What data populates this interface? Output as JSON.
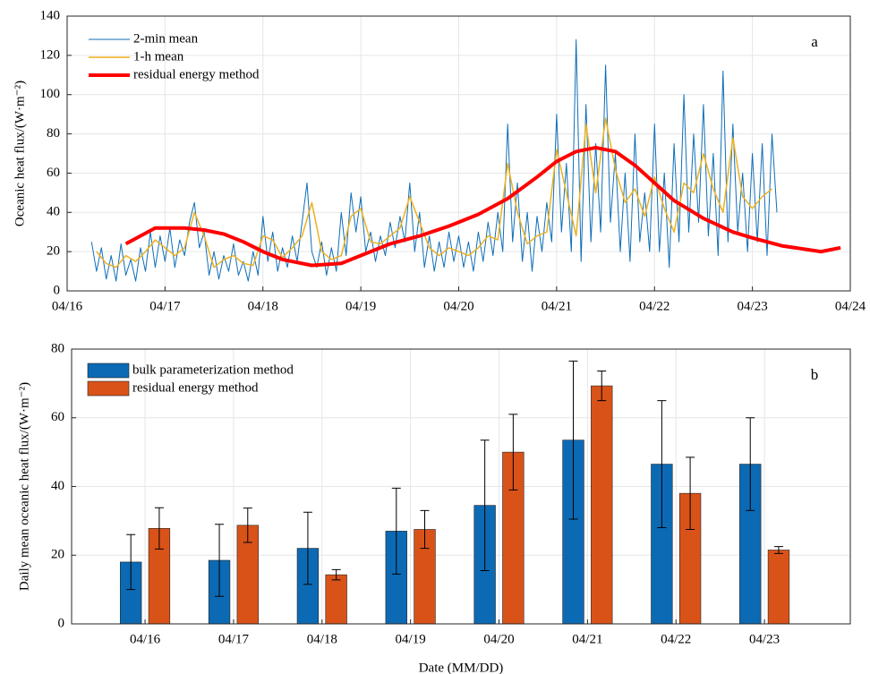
{
  "chart_data": [
    {
      "type": "line",
      "label": "a",
      "ylabel": "Oceanic heat flux/(W·m⁻²)",
      "xlim": [
        16,
        24
      ],
      "xticks": [
        {
          "value": 16,
          "label": "04/16"
        },
        {
          "value": 17,
          "label": "04/17"
        },
        {
          "value": 18,
          "label": "04/18"
        },
        {
          "value": 19,
          "label": "04/19"
        },
        {
          "value": 20,
          "label": "04/20"
        },
        {
          "value": 21,
          "label": "04/21"
        },
        {
          "value": 22,
          "label": "04/22"
        },
        {
          "value": 23,
          "label": "04/23"
        },
        {
          "value": 24,
          "label": "04/24"
        }
      ],
      "ylim": [
        0,
        140
      ],
      "yticks": [
        0,
        20,
        40,
        60,
        80,
        100,
        120,
        140
      ],
      "grid": true,
      "legend": "upper left",
      "series": [
        {
          "name": "2-min mean",
          "color": "#0f6eb8",
          "width": 1,
          "x": [
            16.25,
            16.3,
            16.35,
            16.4,
            16.45,
            16.5,
            16.55,
            16.6,
            16.65,
            16.7,
            16.75,
            16.8,
            16.85,
            16.9,
            16.95,
            17,
            17.05,
            17.1,
            17.15,
            17.2,
            17.25,
            17.3,
            17.35,
            17.4,
            17.45,
            17.5,
            17.55,
            17.6,
            17.65,
            17.7,
            17.75,
            17.8,
            17.85,
            17.9,
            17.95,
            18,
            18.05,
            18.1,
            18.15,
            18.2,
            18.25,
            18.3,
            18.35,
            18.4,
            18.45,
            18.5,
            18.55,
            18.6,
            18.65,
            18.7,
            18.75,
            18.8,
            18.85,
            18.9,
            18.95,
            19,
            19.05,
            19.1,
            19.15,
            19.2,
            19.25,
            19.3,
            19.35,
            19.4,
            19.45,
            19.5,
            19.55,
            19.6,
            19.65,
            19.7,
            19.75,
            19.8,
            19.85,
            19.9,
            19.95,
            20,
            20.05,
            20.1,
            20.15,
            20.2,
            20.25,
            20.3,
            20.35,
            20.4,
            20.45,
            20.5,
            20.55,
            20.6,
            20.65,
            20.7,
            20.75,
            20.8,
            20.85,
            20.9,
            20.95,
            21,
            21.05,
            21.1,
            21.15,
            21.2,
            21.25,
            21.3,
            21.35,
            21.4,
            21.45,
            21.5,
            21.55,
            21.6,
            21.65,
            21.7,
            21.75,
            21.8,
            21.85,
            21.9,
            21.95,
            22,
            22.05,
            22.1,
            22.15,
            22.2,
            22.25,
            22.3,
            22.35,
            22.4,
            22.45,
            22.5,
            22.55,
            22.6,
            22.65,
            22.7,
            22.75,
            22.8,
            22.85,
            22.9,
            22.95,
            23,
            23.05,
            23.1,
            23.15,
            23.2,
            23.25
          ],
          "values": [
            25,
            10,
            22,
            6,
            18,
            5,
            24,
            8,
            16,
            5,
            22,
            10,
            30,
            12,
            28,
            15,
            32,
            12,
            26,
            18,
            35,
            45,
            22,
            30,
            8,
            20,
            6,
            18,
            10,
            24,
            8,
            15,
            5,
            20,
            8,
            38,
            15,
            30,
            10,
            22,
            12,
            28,
            15,
            35,
            55,
            20,
            12,
            25,
            8,
            22,
            10,
            40,
            18,
            50,
            30,
            48,
            20,
            30,
            15,
            28,
            18,
            35,
            22,
            38,
            25,
            55,
            20,
            40,
            12,
            28,
            10,
            25,
            12,
            30,
            15,
            28,
            12,
            25,
            10,
            30,
            15,
            35,
            18,
            40,
            20,
            85,
            25,
            55,
            15,
            40,
            10,
            38,
            20,
            45,
            25,
            90,
            30,
            65,
            20,
            128,
            15,
            95,
            25,
            75,
            30,
            115,
            35,
            70,
            20,
            60,
            15,
            80,
            25,
            50,
            20,
            85,
            20,
            60,
            12,
            75,
            25,
            100,
            30,
            80,
            35,
            95,
            28,
            70,
            18,
            112,
            25,
            85,
            30,
            60,
            20,
            70,
            25,
            75,
            18,
            80,
            40
          ]
        },
        {
          "name": "1-h mean",
          "color": "#edb120",
          "width": 1.5,
          "x": [
            16.3,
            16.4,
            16.5,
            16.6,
            16.7,
            16.8,
            16.9,
            17,
            17.1,
            17.2,
            17.3,
            17.4,
            17.5,
            17.6,
            17.7,
            17.8,
            17.9,
            18,
            18.1,
            18.2,
            18.3,
            18.4,
            18.5,
            18.6,
            18.7,
            18.8,
            18.9,
            19,
            19.1,
            19.2,
            19.3,
            19.4,
            19.5,
            19.6,
            19.7,
            19.8,
            19.9,
            20,
            20.1,
            20.2,
            20.3,
            20.4,
            20.5,
            20.6,
            20.7,
            20.8,
            20.9,
            21,
            21.1,
            21.2,
            21.3,
            21.4,
            21.5,
            21.6,
            21.7,
            21.8,
            21.9,
            22,
            22.1,
            22.2,
            22.3,
            22.4,
            22.5,
            22.6,
            22.7,
            22.8,
            22.9,
            23,
            23.1,
            23.2
          ],
          "values": [
            20,
            14,
            12,
            18,
            15,
            20,
            26,
            22,
            18,
            22,
            40,
            28,
            12,
            16,
            18,
            14,
            13,
            28,
            26,
            17,
            22,
            28,
            45,
            20,
            16,
            18,
            38,
            42,
            25,
            24,
            28,
            32,
            48,
            35,
            22,
            18,
            22,
            20,
            18,
            22,
            28,
            26,
            65,
            40,
            24,
            28,
            30,
            72,
            50,
            28,
            85,
            50,
            88,
            62,
            45,
            52,
            38,
            58,
            42,
            30,
            55,
            50,
            70,
            52,
            40,
            78,
            48,
            42,
            48,
            52
          ]
        },
        {
          "name": "residual energy method",
          "color": "#ff0000",
          "width": 4,
          "x": [
            16.6,
            16.9,
            17.2,
            17.4,
            17.6,
            17.8,
            18,
            18.2,
            18.5,
            18.8,
            19,
            19.3,
            19.6,
            19.9,
            20.2,
            20.5,
            20.8,
            21,
            21.2,
            21.4,
            21.6,
            21.8,
            22,
            22.2,
            22.5,
            22.8,
            23,
            23.3,
            23.7,
            23.9
          ],
          "values": [
            24,
            32,
            32,
            31,
            29,
            25,
            20,
            16,
            13,
            14,
            18,
            24,
            28,
            33,
            39,
            47,
            58,
            66,
            71,
            73,
            71,
            64,
            55,
            46,
            37,
            30,
            27,
            23,
            20,
            22
          ]
        }
      ]
    },
    {
      "type": "bar",
      "label": "b",
      "xlabel": "Date (MM/DD)",
      "ylabel": "Daily mean oceanic heat flux/(W·m⁻²)",
      "categories": [
        "04/16",
        "04/17",
        "04/18",
        "04/19",
        "04/20",
        "04/21",
        "04/22",
        "04/23"
      ],
      "ylim": [
        0,
        80
      ],
      "yticks": [
        0,
        20,
        40,
        60,
        80
      ],
      "grid": true,
      "legend": "upper left",
      "series": [
        {
          "name": "bulk parameterization method",
          "color": "#0c6ab4",
          "values": [
            18,
            18.5,
            22,
            27,
            34.5,
            53.5,
            46.5,
            46.5
          ],
          "errors": [
            8,
            10.5,
            10.5,
            12.5,
            19,
            23,
            18.5,
            13.5
          ]
        },
        {
          "name": "residual energy method",
          "color": "#d95319",
          "values": [
            27.8,
            28.7,
            14.3,
            27.5,
            50,
            69.3,
            38,
            21.5
          ],
          "errors": [
            6,
            5,
            1.5,
            5.5,
            11,
            4.3,
            10.5,
            1
          ]
        }
      ]
    }
  ]
}
